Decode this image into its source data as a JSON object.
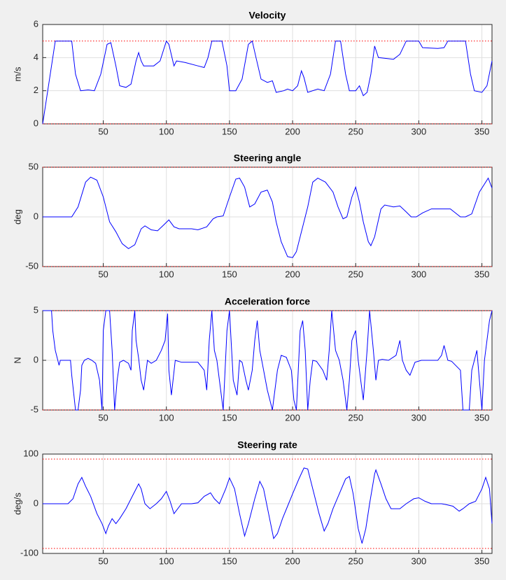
{
  "chart_data": [
    {
      "type": "line",
      "title": "Velocity",
      "ylabel": "m/s",
      "color": "#0000ff",
      "grid": true,
      "limit_lines": [
        5,
        0
      ],
      "limit_color": "#ff0000",
      "xlim": [
        2,
        358
      ],
      "ylim": [
        0,
        6
      ],
      "xticks": [
        50,
        100,
        150,
        200,
        250,
        300,
        350
      ],
      "yticks": [
        0,
        2,
        4,
        6
      ],
      "x": [
        2,
        12,
        25,
        28,
        32,
        38,
        43,
        48,
        53,
        56,
        60,
        63,
        68,
        72,
        76,
        78,
        80,
        82,
        90,
        95,
        100,
        102,
        106,
        108,
        115,
        125,
        130,
        133,
        136,
        144,
        148,
        150,
        155,
        160,
        165,
        168,
        171,
        175,
        180,
        184,
        187,
        193,
        196,
        200,
        204,
        207,
        209,
        212,
        220,
        225,
        230,
        234,
        238,
        242,
        245,
        250,
        253,
        256,
        259,
        262,
        265,
        268,
        280,
        285,
        290,
        300,
        303,
        315,
        320,
        323,
        337,
        341,
        344,
        350,
        354,
        358
      ],
      "values": [
        0,
        5,
        5,
        3,
        2,
        2.05,
        2,
        3,
        4.8,
        4.9,
        3.5,
        2.3,
        2.2,
        2.4,
        3.8,
        4.3,
        3.8,
        3.5,
        3.5,
        3.8,
        5,
        4.8,
        3.5,
        3.8,
        3.7,
        3.5,
        3.4,
        4,
        5,
        5,
        3.5,
        2,
        2,
        2.7,
        4.8,
        5,
        4,
        2.7,
        2.5,
        2.6,
        1.9,
        2,
        2.1,
        2,
        2.3,
        3.2,
        2.8,
        1.9,
        2.1,
        2,
        3,
        5,
        5,
        3,
        2,
        2,
        2.3,
        1.7,
        1.9,
        3,
        4.7,
        4,
        3.9,
        4.2,
        5,
        5,
        4.6,
        4.55,
        4.6,
        5,
        5,
        3,
        2,
        1.9,
        2.3,
        3.8
      ]
    },
    {
      "type": "line",
      "title": "Steering angle",
      "ylabel": "deg",
      "color": "#0000ff",
      "grid": true,
      "limit_lines": [
        50,
        -50
      ],
      "limit_color": "#ff0000",
      "xlim": [
        2,
        358
      ],
      "ylim": [
        -50,
        50
      ],
      "xticks": [
        50,
        100,
        150,
        200,
        250,
        300,
        350
      ],
      "yticks": [
        -50,
        0,
        50
      ],
      "x": [
        2,
        25,
        30,
        36,
        40,
        45,
        50,
        55,
        60,
        65,
        70,
        75,
        80,
        83,
        88,
        93,
        98,
        102,
        106,
        110,
        120,
        125,
        132,
        137,
        140,
        145,
        150,
        155,
        158,
        162,
        166,
        170,
        175,
        180,
        184,
        187,
        191,
        196,
        200,
        203,
        207,
        212,
        216,
        220,
        226,
        232,
        236,
        240,
        243,
        247,
        250,
        253,
        256,
        260,
        262,
        265,
        270,
        273,
        280,
        285,
        290,
        294,
        298,
        303,
        310,
        320,
        325,
        328,
        333,
        337,
        342,
        348,
        355,
        358
      ],
      "values": [
        0,
        0,
        10,
        35,
        40,
        37,
        20,
        -5,
        -15,
        -27,
        -32,
        -28,
        -12,
        -9,
        -13,
        -14,
        -8,
        -3,
        -10,
        -12,
        -12,
        -13,
        -10,
        -2,
        0,
        1,
        20,
        38,
        39,
        30,
        10,
        13,
        25,
        27,
        15,
        -5,
        -25,
        -40,
        -41,
        -35,
        -15,
        10,
        35,
        39,
        35,
        25,
        10,
        -2,
        0,
        20,
        30,
        15,
        -5,
        -25,
        -29,
        -20,
        8,
        12,
        10,
        11,
        5,
        0,
        0,
        4,
        8,
        8,
        8,
        5,
        0,
        0,
        3,
        25,
        39,
        29
      ]
    },
    {
      "type": "line",
      "title": "Acceleration force",
      "ylabel": "N",
      "color": "#0000ff",
      "grid": true,
      "limit_lines": [
        5,
        -5
      ],
      "limit_color": "#ff0000",
      "xlim": [
        2,
        358
      ],
      "ylim": [
        -5,
        5
      ],
      "xticks": [
        50,
        100,
        150,
        200,
        250,
        300,
        350
      ],
      "yticks": [
        -5,
        0,
        5
      ],
      "x": [
        2,
        9,
        10,
        12,
        15,
        16,
        24,
        25,
        28,
        30,
        32,
        33,
        35,
        38,
        41,
        44,
        47,
        49,
        50,
        52,
        55,
        57,
        59,
        61,
        63,
        66,
        70,
        72,
        73,
        75,
        76,
        78,
        80,
        82,
        85,
        88,
        92,
        96,
        99,
        101,
        102,
        104,
        107,
        112,
        125,
        130,
        132,
        134,
        136,
        138,
        140,
        142,
        145,
        148,
        150,
        153,
        156,
        158,
        160,
        163,
        165,
        168,
        170,
        172,
        174,
        176,
        180,
        184,
        188,
        191,
        195,
        199,
        201,
        203,
        206,
        208,
        210,
        212,
        214,
        216,
        219,
        224,
        227,
        229,
        231,
        234,
        237,
        240,
        243,
        245,
        247,
        250,
        252,
        254,
        256,
        259,
        261,
        264,
        266,
        268,
        271,
        276,
        282,
        285,
        287,
        290,
        293,
        297,
        302,
        315,
        318,
        320,
        323,
        326,
        333,
        335,
        340,
        342,
        344,
        346,
        348,
        350,
        352,
        354,
        356,
        358
      ],
      "values": [
        5,
        5,
        3,
        1,
        -0.5,
        0,
        0,
        -1.5,
        -5,
        -5,
        -3,
        -0.5,
        0,
        0.2,
        0,
        -0.3,
        -2,
        -5,
        3,
        5,
        5,
        1,
        -5,
        -2,
        -0.2,
        0,
        -0.3,
        -1,
        3,
        5,
        2,
        0.2,
        -2,
        -3,
        0,
        -0.3,
        0,
        1,
        2,
        4.7,
        -1,
        -3.5,
        0,
        -0.2,
        -0.2,
        -1,
        -3,
        2,
        5,
        1,
        0,
        -2,
        -5,
        3,
        5,
        -2,
        -3.5,
        0,
        -0.2,
        -2,
        -3,
        -1,
        2,
        4,
        1,
        -0.3,
        -3,
        -5,
        -1,
        0.5,
        0.3,
        -1,
        -4,
        -5,
        3,
        4,
        1,
        -5,
        -2,
        0,
        -0.1,
        -1,
        -2,
        1,
        5,
        1,
        0,
        -2,
        -5,
        -2,
        2,
        3,
        0,
        -2,
        -4,
        1,
        5,
        1,
        -2,
        0,
        0.1,
        0,
        0.5,
        2,
        0,
        -1,
        -1.5,
        -0.2,
        0,
        0,
        0.5,
        1.5,
        0,
        -0.1,
        -1,
        -5,
        -5,
        -1,
        0,
        1,
        -2,
        -5,
        0,
        2,
        4,
        5
      ]
    },
    {
      "type": "line",
      "title": "Steering rate",
      "ylabel": "deg/s",
      "color": "#0000ff",
      "grid": true,
      "limit_lines": [
        90,
        -90
      ],
      "limit_color": "#ff0000",
      "xlim": [
        2,
        358
      ],
      "ylim": [
        -100,
        100
      ],
      "xticks": [
        50,
        100,
        150,
        200,
        250,
        300,
        350
      ],
      "yticks": [
        -100,
        0,
        100
      ],
      "x": [
        2,
        22,
        26,
        30,
        33,
        36,
        40,
        45,
        49,
        52,
        54,
        57,
        60,
        63,
        68,
        73,
        78,
        80,
        83,
        87,
        92,
        96,
        100,
        103,
        106,
        109,
        112,
        120,
        125,
        130,
        135,
        138,
        142,
        147,
        150,
        154,
        158,
        162,
        165,
        170,
        174,
        177,
        181,
        185,
        188,
        192,
        196,
        200,
        205,
        209,
        212,
        216,
        221,
        225,
        228,
        232,
        237,
        242,
        245,
        248,
        252,
        255,
        258,
        261,
        265,
        266,
        270,
        274,
        278,
        285,
        290,
        296,
        300,
        305,
        310,
        318,
        322,
        327,
        332,
        335,
        340,
        345,
        350,
        353,
        356,
        358
      ],
      "values": [
        0,
        0,
        10,
        40,
        53,
        35,
        15,
        -20,
        -40,
        -60,
        -45,
        -30,
        -40,
        -30,
        -10,
        15,
        40,
        30,
        0,
        -10,
        0,
        10,
        25,
        5,
        -20,
        -10,
        0,
        0,
        2,
        15,
        22,
        10,
        0,
        30,
        52,
        30,
        -20,
        -65,
        -40,
        10,
        45,
        30,
        -20,
        -70,
        -60,
        -30,
        -5,
        20,
        50,
        72,
        70,
        30,
        -20,
        -55,
        -40,
        -10,
        20,
        50,
        55,
        20,
        -50,
        -80,
        -50,
        0,
        60,
        68,
        40,
        10,
        -10,
        -10,
        0,
        10,
        12,
        5,
        0,
        0,
        -2,
        -5,
        -15,
        -10,
        0,
        5,
        30,
        53,
        30,
        -40
      ]
    }
  ]
}
